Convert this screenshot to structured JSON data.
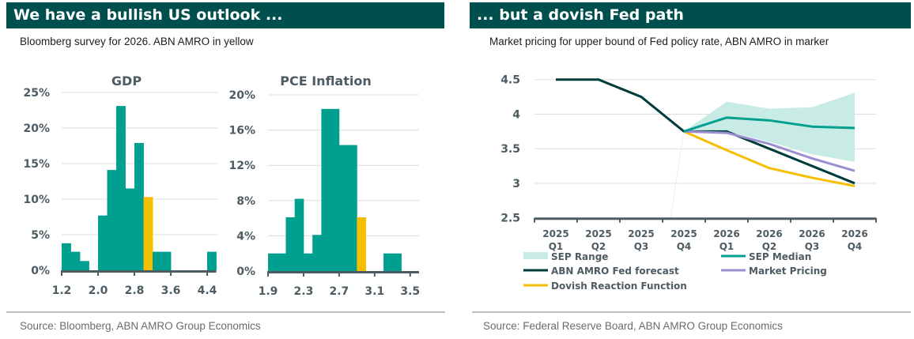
{
  "left_panel": {
    "title": "We have a bullish US outlook ...",
    "subtitle": "Bloomberg survey for 2026. ABN AMRO in yellow",
    "source": "Source: Bloomberg, ABN AMRO Group Economics"
  },
  "right_panel": {
    "title": "... but a dovish Fed path",
    "subtitle": "Market pricing for upper bound of Fed policy rate, ABN AMRO in marker",
    "source": "Source: Federal Reserve Board, ABN AMRO Group Economics"
  },
  "colors": {
    "header": "#004f4f",
    "teal": "#00a090",
    "yellow": "#f5bf00",
    "dark": "#003c3c",
    "purple": "#9a8fd0",
    "sep_range": "#c9ebe6",
    "axis": "#4d5b63",
    "grid": "#dcdcdc"
  },
  "chart_data": [
    {
      "type": "bar",
      "title": "GDP",
      "xlabel": "",
      "ylabel": "",
      "bin_width": 0.2,
      "bins_start": [
        1.2,
        1.4,
        1.6,
        1.8,
        2.0,
        2.2,
        2.4,
        2.6,
        2.8,
        3.0,
        3.2,
        3.4,
        3.6,
        3.8,
        4.0,
        4.2,
        4.4
      ],
      "values": [
        3.8,
        2.6,
        1.3,
        0,
        7.7,
        14.1,
        23.1,
        11.5,
        17.9,
        10.3,
        2.6,
        2.6,
        0,
        0,
        0,
        0,
        2.6
      ],
      "highlight_index": 9,
      "xlim": [
        1.2,
        4.6
      ],
      "xticks": [
        1.2,
        2.0,
        2.8,
        3.6,
        4.4
      ],
      "xtick_labels": [
        "1.2",
        "2.0",
        "2.8",
        "3.6",
        "4.4"
      ],
      "ylim": [
        0,
        25
      ],
      "yticks": [
        0,
        5,
        10,
        15,
        20,
        25
      ],
      "ytick_labels": [
        "0%",
        "5%",
        "10%",
        "15%",
        "20%",
        "25%"
      ],
      "grid": true
    },
    {
      "type": "bar",
      "title": "PCE Inflation",
      "xlabel": "",
      "ylabel": "",
      "bin_width": 0.1,
      "bins_start": [
        1.9,
        2.0,
        2.1,
        2.2,
        2.3,
        2.4,
        2.5,
        2.6,
        2.7,
        2.8,
        2.9,
        3.0,
        3.1,
        3.2,
        3.3,
        3.4
      ],
      "values": [
        2.0,
        2.0,
        6.1,
        8.2,
        2.0,
        4.1,
        18.4,
        18.4,
        14.3,
        14.3,
        6.1,
        0,
        0,
        2.0,
        2.0,
        0
      ],
      "highlight_index": 10,
      "xlim": [
        1.9,
        3.6
      ],
      "xticks": [
        1.9,
        2.3,
        2.7,
        3.1,
        3.5
      ],
      "xtick_labels": [
        "1.9",
        "2.3",
        "2.7",
        "3.1",
        "3.5"
      ],
      "ylim": [
        0,
        20
      ],
      "yticks": [
        0,
        4,
        8,
        12,
        16,
        20
      ],
      "ytick_labels": [
        "0%",
        "4%",
        "8%",
        "12%",
        "16%",
        "20%"
      ],
      "grid": true
    },
    {
      "type": "line",
      "title": "",
      "categories": [
        [
          "2025",
          "Q1"
        ],
        [
          "2025",
          "Q2"
        ],
        [
          "2025",
          "Q3"
        ],
        [
          "2025",
          "Q4"
        ],
        [
          "2026",
          "Q1"
        ],
        [
          "2026",
          "Q2"
        ],
        [
          "2026",
          "Q3"
        ],
        [
          "2026",
          "Q4"
        ]
      ],
      "ylim": [
        2.5,
        4.5
      ],
      "yticks": [
        2.5,
        3,
        3.5,
        4,
        4.5
      ],
      "ytick_labels": [
        "2.5",
        "3",
        "3.5",
        "4",
        "4.5"
      ],
      "grid": true,
      "legend_position": "bottom",
      "range_series": {
        "name": "SEP Range",
        "start_index": 3,
        "upper": [
          3.75,
          4.18,
          4.08,
          4.1,
          4.31
        ],
        "lower": [
          3.75,
          3.75,
          3.6,
          3.42,
          3.31
        ]
      },
      "series": [
        {
          "name": "SEP Median",
          "key": "teal",
          "start_index": 3,
          "values": [
            3.75,
            3.95,
            3.91,
            3.82,
            3.8
          ]
        },
        {
          "name": "ABN AMRO Fed forecast",
          "key": "dark",
          "start_index": 0,
          "values": [
            4.5,
            4.5,
            4.25,
            3.75,
            3.75,
            3.5,
            3.25,
            3.0
          ]
        },
        {
          "name": "Market Pricing",
          "key": "purple",
          "start_index": 3,
          "values": [
            3.75,
            3.73,
            3.57,
            3.36,
            3.18
          ]
        },
        {
          "name": "Dovish Reaction Function",
          "key": "yellow",
          "start_index": 3,
          "values": [
            3.75,
            3.48,
            3.22,
            3.08,
            2.96
          ]
        }
      ],
      "legend": [
        {
          "label": "SEP Range",
          "key": "sep_range",
          "kind": "area"
        },
        {
          "label": "SEP Median",
          "key": "teal",
          "kind": "line"
        },
        {
          "label": "ABN AMRO Fed forecast",
          "key": "dark",
          "kind": "line"
        },
        {
          "label": "Market Pricing",
          "key": "purple",
          "kind": "line"
        },
        {
          "label": "Dovish Reaction Function",
          "key": "yellow",
          "kind": "line"
        }
      ]
    }
  ]
}
